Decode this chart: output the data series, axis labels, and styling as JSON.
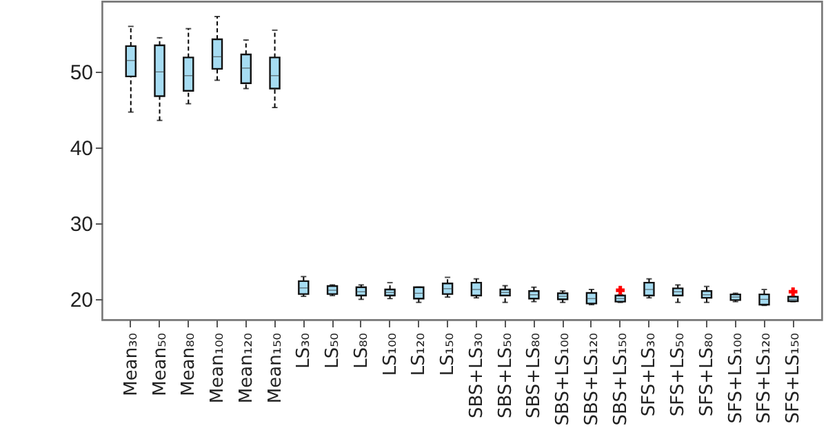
{
  "chart_data": {
    "type": "box",
    "categories": [
      "Mean₃₀",
      "Mean₅₀",
      "Mean₈₀",
      "Mean₁₀₀",
      "Mean₁₂₀",
      "Mean₁₅₀",
      "LS₃₀",
      "LS₅₀",
      "LS₈₀",
      "LS₁₀₀",
      "LS₁₂₀",
      "LS₁₅₀",
      "SBS+LS₃₀",
      "SBS+LS₅₀",
      "SBS+LS₈₀",
      "SBS+LS₁₀₀",
      "SBS+LS₁₂₀",
      "SBS+LS₁₅₀",
      "SFS+LS₃₀",
      "SFS+LS₅₀",
      "SFS+LS₈₀",
      "SFS+LS₁₀₀",
      "SFS+LS₁₂₀",
      "SFS+LS₁₅₀"
    ],
    "color": "#a6dcf2",
    "boxes": [
      {
        "low": 44.7,
        "q1": 49.4,
        "median": 51.5,
        "q3": 53.4,
        "high": 56
      },
      {
        "low": 43.6,
        "q1": 46.8,
        "median": 50,
        "q3": 53.5,
        "high": 54.5
      },
      {
        "low": 45.8,
        "q1": 47.5,
        "median": 49.5,
        "q3": 51.9,
        "high": 55.7
      },
      {
        "low": 48.9,
        "q1": 50.4,
        "median": 52,
        "q3": 54.3,
        "high": 57.3
      },
      {
        "low": 47.8,
        "q1": 48.5,
        "median": 50.5,
        "q3": 52.3,
        "high": 54.2
      },
      {
        "low": 45.3,
        "q1": 47.8,
        "median": 49.5,
        "q3": 51.9,
        "high": 55.5
      },
      {
        "low": 20.4,
        "q1": 20.7,
        "median": 21.5,
        "q3": 22.4,
        "high": 23
      },
      {
        "low": 20.5,
        "q1": 20.7,
        "median": 21.2,
        "q3": 21.75,
        "high": 21.9
      },
      {
        "low": 20,
        "q1": 20.5,
        "median": 21,
        "q3": 21.6,
        "high": 21.9
      },
      {
        "low": 20.1,
        "q1": 20.5,
        "median": 20.9,
        "q3": 21.3,
        "high": 22.2
      },
      {
        "low": 19.6,
        "q1": 20.1,
        "median": 20.8,
        "q3": 21.6,
        "high": 21.6
      },
      {
        "low": 20.3,
        "q1": 20.7,
        "median": 21.4,
        "q3": 22.1,
        "high": 22.9
      },
      {
        "low": 20.2,
        "q1": 20.5,
        "median": 21.3,
        "q3": 22.2,
        "high": 22.7
      },
      {
        "low": 19.6,
        "q1": 20.5,
        "median": 20.9,
        "q3": 21.3,
        "high": 21.8
      },
      {
        "low": 19.7,
        "q1": 20.1,
        "median": 20.6,
        "q3": 21.1,
        "high": 21.6
      },
      {
        "low": 19.6,
        "q1": 20,
        "median": 20.4,
        "q3": 20.8,
        "high": 21.1
      },
      {
        "low": 19.3,
        "q1": 19.45,
        "median": 20.1,
        "q3": 20.85,
        "high": 21.3
      },
      {
        "low": 19.6,
        "q1": 19.7,
        "median": 20.1,
        "q3": 20.5,
        "high": 20.6,
        "outliers": [
          21.2
        ]
      },
      {
        "low": 20.2,
        "q1": 20.5,
        "median": 21.3,
        "q3": 22.2,
        "high": 22.7
      },
      {
        "low": 19.6,
        "q1": 20.5,
        "median": 21,
        "q3": 21.45,
        "high": 21.9
      },
      {
        "low": 19.6,
        "q1": 20.2,
        "median": 20.6,
        "q3": 21.1,
        "high": 21.7
      },
      {
        "low": 19.7,
        "q1": 19.9,
        "median": 20.3,
        "q3": 20.65,
        "high": 20.8
      },
      {
        "low": 19.2,
        "q1": 19.3,
        "median": 20,
        "q3": 20.65,
        "high": 21.3
      },
      {
        "low": 19.7,
        "q1": 19.75,
        "median": 20,
        "q3": 20.35,
        "high": 20.4,
        "outliers": [
          21
        ]
      }
    ],
    "ylim": [
      17.3,
      59.3
    ],
    "yticks": [
      20,
      30,
      40,
      50
    ],
    "grid": false
  }
}
